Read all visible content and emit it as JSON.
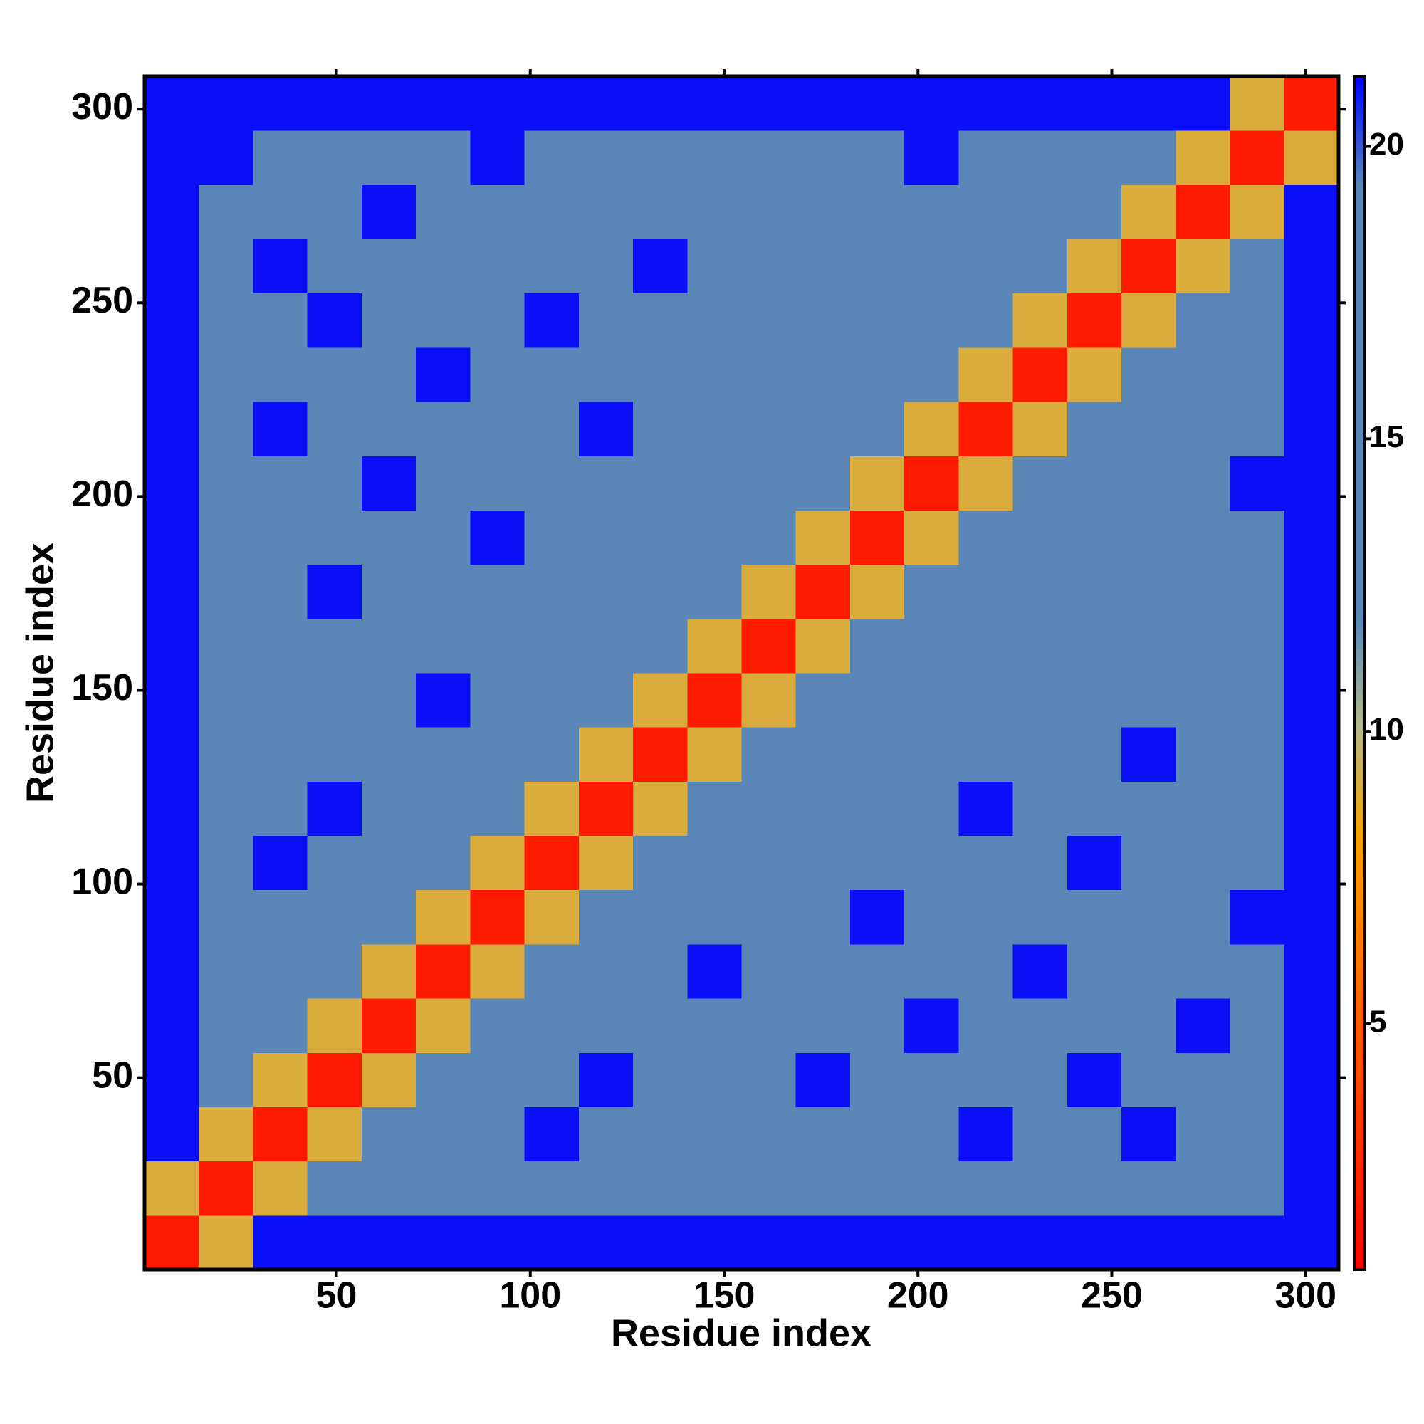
{
  "chart_data": {
    "type": "heatmap",
    "xlabel": "Residue index",
    "ylabel": "Residue index",
    "x": [
      7.5,
      21.5,
      35.5,
      49.5,
      63.5,
      77.5,
      91.5,
      105.5,
      119.5,
      133.5,
      147.5,
      161.5,
      175.5,
      189.5,
      203.5,
      217.5,
      231.5,
      245.5,
      259.5,
      273.5,
      287.5,
      301.5
    ],
    "y": [
      7.5,
      21.5,
      35.5,
      49.5,
      63.5,
      77.5,
      91.5,
      105.5,
      119.5,
      133.5,
      147.5,
      161.5,
      175.5,
      189.5,
      203.5,
      217.5,
      231.5,
      245.5,
      259.5,
      273.5,
      287.5,
      301.5
    ],
    "z": [
      [
        2,
        9,
        21,
        21,
        21,
        21,
        21,
        21,
        21,
        21,
        21,
        21,
        21,
        21,
        21,
        21,
        21,
        21,
        21,
        21,
        21,
        21
      ],
      [
        9,
        2,
        9,
        12,
        17,
        17,
        17,
        17,
        17,
        17,
        17,
        17,
        17,
        17,
        17,
        17,
        17,
        17,
        17,
        17,
        17,
        21
      ],
      [
        21,
        9,
        2,
        9,
        12,
        17,
        17,
        21,
        17,
        17,
        17,
        17,
        17,
        17,
        17,
        21,
        17,
        17,
        21,
        17,
        17,
        21
      ],
      [
        21,
        12,
        9,
        2,
        9,
        12,
        17,
        17,
        21,
        17,
        17,
        17,
        21,
        17,
        17,
        17,
        17,
        21,
        17,
        17,
        17,
        21
      ],
      [
        21,
        17,
        12,
        9,
        2,
        9,
        12,
        17,
        17,
        17,
        17,
        17,
        17,
        17,
        21,
        17,
        17,
        17,
        17,
        21,
        17,
        21
      ],
      [
        21,
        17,
        17,
        12,
        9,
        2,
        9,
        12,
        17,
        17,
        21,
        17,
        17,
        17,
        17,
        17,
        21,
        17,
        17,
        17,
        17,
        21
      ],
      [
        21,
        17,
        17,
        17,
        12,
        9,
        2,
        9,
        12,
        17,
        17,
        17,
        17,
        21,
        17,
        17,
        17,
        17,
        17,
        17,
        21,
        21
      ],
      [
        21,
        17,
        21,
        17,
        17,
        12,
        9,
        2,
        9,
        12,
        17,
        17,
        17,
        17,
        17,
        17,
        17,
        21,
        17,
        17,
        17,
        21
      ],
      [
        21,
        17,
        17,
        21,
        17,
        17,
        12,
        9,
        2,
        9,
        12,
        17,
        17,
        17,
        17,
        21,
        17,
        17,
        17,
        17,
        17,
        21
      ],
      [
        21,
        17,
        17,
        17,
        17,
        17,
        17,
        12,
        9,
        2,
        9,
        12,
        17,
        17,
        17,
        17,
        17,
        17,
        21,
        17,
        17,
        21
      ],
      [
        21,
        17,
        17,
        17,
        17,
        21,
        17,
        17,
        12,
        9,
        2,
        9,
        12,
        17,
        17,
        17,
        17,
        17,
        17,
        17,
        17,
        21
      ],
      [
        21,
        17,
        17,
        17,
        17,
        17,
        17,
        17,
        17,
        12,
        9,
        2,
        9,
        12,
        17,
        17,
        17,
        17,
        17,
        17,
        17,
        21
      ],
      [
        21,
        17,
        17,
        21,
        17,
        17,
        17,
        17,
        17,
        17,
        12,
        9,
        2,
        9,
        12,
        17,
        17,
        17,
        17,
        17,
        17,
        21
      ],
      [
        21,
        17,
        17,
        17,
        17,
        17,
        21,
        17,
        17,
        17,
        17,
        12,
        9,
        2,
        9,
        12,
        17,
        17,
        17,
        17,
        17,
        21
      ],
      [
        21,
        17,
        17,
        17,
        21,
        17,
        17,
        17,
        17,
        17,
        17,
        17,
        12,
        9,
        2,
        9,
        12,
        17,
        17,
        17,
        21,
        21
      ],
      [
        21,
        17,
        21,
        17,
        17,
        17,
        17,
        17,
        21,
        17,
        17,
        17,
        17,
        12,
        9,
        2,
        9,
        12,
        17,
        17,
        17,
        21
      ],
      [
        21,
        17,
        17,
        17,
        17,
        21,
        17,
        17,
        17,
        17,
        17,
        17,
        17,
        17,
        12,
        9,
        2,
        9,
        12,
        17,
        17,
        21
      ],
      [
        21,
        17,
        17,
        21,
        17,
        17,
        17,
        21,
        17,
        17,
        17,
        17,
        17,
        17,
        17,
        12,
        9,
        2,
        9,
        12,
        17,
        21
      ],
      [
        21,
        17,
        21,
        17,
        17,
        17,
        17,
        17,
        17,
        21,
        17,
        17,
        17,
        17,
        17,
        17,
        12,
        9,
        2,
        9,
        12,
        21
      ],
      [
        21,
        17,
        17,
        17,
        21,
        17,
        17,
        17,
        17,
        17,
        17,
        17,
        17,
        17,
        17,
        17,
        17,
        12,
        9,
        2,
        9,
        21
      ],
      [
        21,
        21,
        17,
        17,
        17,
        17,
        21,
        17,
        17,
        17,
        17,
        17,
        17,
        17,
        21,
        17,
        17,
        17,
        12,
        9,
        2,
        9
      ],
      [
        21,
        21,
        21,
        21,
        21,
        21,
        21,
        21,
        21,
        21,
        21,
        21,
        21,
        21,
        21,
        21,
        21,
        21,
        21,
        21,
        9,
        2
      ]
    ],
    "xlim": [
      0.5,
      308.5
    ],
    "ylim": [
      0.5,
      308.5
    ],
    "xticks": [
      50,
      100,
      150,
      200,
      250,
      300
    ],
    "yticks": [
      50,
      100,
      150,
      200,
      250,
      300
    ],
    "clim": [
      0.8,
      21.2
    ],
    "cticks": [
      5,
      10,
      15,
      20
    ],
    "colorscale": [
      "#ff0000",
      "#ff2a00",
      "#ff5000",
      "#ff7a00",
      "#f4a200",
      "#b3b98c",
      "#5b87b8",
      "#5b87b8",
      "#5b87b8",
      "#5b87b8",
      "#5b87b8",
      "#0000ff"
    ]
  }
}
